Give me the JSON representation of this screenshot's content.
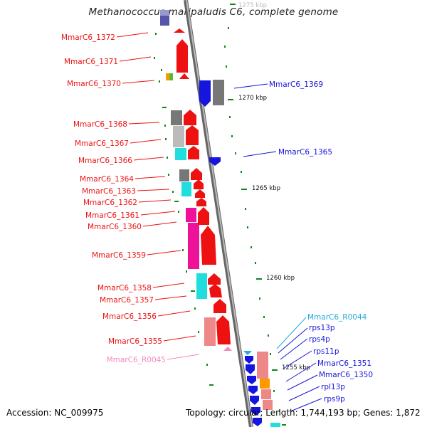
{
  "title": "Methanococcus maripaludis C6, complete genome",
  "footer": {
    "accession": "Accession: NC_009975",
    "summary": "Topology: circular; Length: 1,744,193 bp; Genes: 1,872"
  },
  "scale_labels": [
    "1275 kbp",
    "1270 kbp",
    "1265 kbp",
    "1260 kbp",
    "1255 kbp"
  ],
  "left_labels": [
    "MmarC6_1372",
    "MmarC6_1371",
    "MmarC6_1370",
    "MmarC6_1368",
    "MmarC6_1367",
    "MmarC6_1366",
    "MmarC6_1364",
    "MmarC6_1363",
    "MmarC6_1362",
    "MmarC6_1361",
    "MmarC6_1360",
    "MmarC6_1359",
    "MmarC6_1358",
    "MmarC6_1357",
    "MmarC6_1356",
    "MmarC6_1355",
    "MmarC6_R0045"
  ],
  "right_labels": [
    "MmarC6_1369",
    "MmarC6_1365",
    "MmarC6_R0044",
    "rps13p",
    "rps4p",
    "rps11p",
    "MmarC6_1351",
    "MmarC6_1350",
    "rpl13p",
    "rps9p"
  ],
  "colors": {
    "forward_gene": "#ee1111",
    "reverse_gene": "#1515dd",
    "rna_forward": "#f28aba",
    "rna_reverse": "#22aadd",
    "backbone": "#888888",
    "tick": "#118811",
    "cog_grey": "#777777",
    "cog_light_grey": "#bbbbbb",
    "cog_cyan": "#22dddd",
    "cog_magenta": "#ee1199",
    "cog_salmon": "#ee8888",
    "cog_orange": "#ff9900",
    "cog_navy": "#5555aa",
    "cog_green": "#55bb33"
  }
}
